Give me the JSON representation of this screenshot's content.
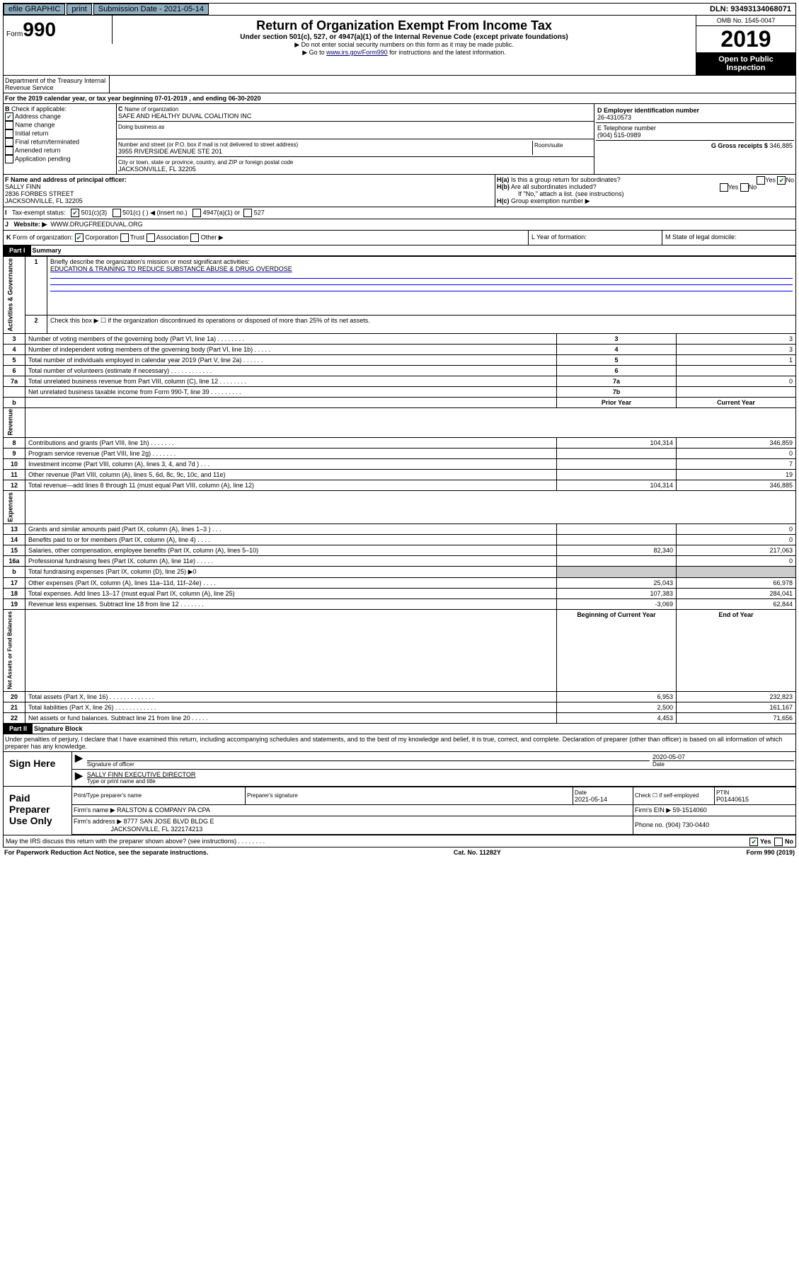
{
  "topbar": {
    "efile": "efile GRAPHIC",
    "print": "print",
    "subdate_label": "Submission Date - 2021-05-14",
    "dln": "DLN: 93493134068071"
  },
  "header": {
    "form_label": "Form",
    "form_num": "990",
    "title": "Return of Organization Exempt From Income Tax",
    "subtitle": "Under section 501(c), 527, or 4947(a)(1) of the Internal Revenue Code (except private foundations)",
    "note1": "▶ Do not enter social security numbers on this form as it may be made public.",
    "note2_pre": "▶ Go to ",
    "note2_link": "www.irs.gov/Form990",
    "note2_post": " for instructions and the latest information.",
    "omb": "OMB No. 1545-0047",
    "year": "2019",
    "open": "Open to Public Inspection",
    "dept": "Department of the Treasury Internal Revenue Service"
  },
  "lineA": "For the 2019 calendar year, or tax year beginning 07-01-2019    , and ending 06-30-2020",
  "boxB": {
    "label": "Check if applicable:",
    "addr": "Address change",
    "name": "Name change",
    "initial": "Initial return",
    "final": "Final return/terminated",
    "amended": "Amended return",
    "app": "Application pending"
  },
  "boxC": {
    "name_lbl": "Name of organization",
    "name": "SAFE AND HEALTHY DUVAL COALITION INC",
    "dba_lbl": "Doing business as",
    "addr_lbl": "Number and street (or P.O. box if mail is not delivered to street address)",
    "addr": "3955 RIVERSIDE AVENUE STE 201",
    "room_lbl": "Room/suite",
    "city_lbl": "City or town, state or province, country, and ZIP or foreign postal code",
    "city": "JACKSONVILLE, FL  32205"
  },
  "boxD": {
    "lbl": "D Employer identification number",
    "val": "26-4310573"
  },
  "boxE": {
    "lbl": "E Telephone number",
    "val": "(904) 515-0989"
  },
  "boxG": {
    "lbl": "G Gross receipts $",
    "val": "346,885"
  },
  "boxF": {
    "lbl": "F  Name and address of principal officer:",
    "name": "SALLY FINN",
    "addr1": "2836 FORBES STREET",
    "addr2": "JACKSONVILLE, FL  32205"
  },
  "boxH": {
    "a": "Is this a group return for subordinates?",
    "b": "Are all subordinates included?",
    "b_note": "If \"No,\" attach a list. (see instructions)",
    "c": "Group exemption number ▶",
    "yes": "Yes",
    "no": "No"
  },
  "boxI": {
    "lbl": "Tax-exempt status:",
    "o1": "501(c)(3)",
    "o2": "501(c) (   ) ◀ (insert no.)",
    "o3": "4947(a)(1) or",
    "o4": "527"
  },
  "boxJ": {
    "lbl": "Website: ▶",
    "val": "WWW.DRUGFREEDUVAL.ORG"
  },
  "boxK": {
    "lbl": "Form of organization:",
    "corp": "Corporation",
    "trust": "Trust",
    "assoc": "Association",
    "other": "Other ▶"
  },
  "boxL": {
    "lbl": "L Year of formation:"
  },
  "boxM": {
    "lbl": "M State of legal domicile:"
  },
  "part1": {
    "hdr": "Part I",
    "title": "Summary",
    "line1_lbl": "Briefly describe the organization's mission or most significant activities:",
    "line1_val": "EDUCATION & TRAINING TO REDUCE SUBSTANCE ABUSE & DRUG OVERDOSE",
    "line2": "Check this box ▶ ☐  if the organization discontinued its operations or disposed of more than 25% of its net assets.",
    "rows_gov": [
      {
        "n": "3",
        "t": "Number of voting members of the governing body (Part VI, line 1a)   .    .    .    .    .    .    .    .",
        "c": "3",
        "v": "3"
      },
      {
        "n": "4",
        "t": "Number of independent voting members of the governing body (Part VI, line 1b)  .    .    .    .    .",
        "c": "4",
        "v": "3"
      },
      {
        "n": "5",
        "t": "Total number of individuals employed in calendar year 2019 (Part V, line 2a)  .    .    .    .    .    .",
        "c": "5",
        "v": "1"
      },
      {
        "n": "6",
        "t": "Total number of volunteers (estimate if necessary)   .    .    .    .    .    .    .    .    .    .    .    .",
        "c": "6",
        "v": ""
      },
      {
        "n": "7a",
        "t": "Total unrelated business revenue from Part VIII, column (C), line 12  .    .    .    .    .    .    .    .",
        "c": "7a",
        "v": "0"
      },
      {
        "n": "",
        "t": "Net unrelated business taxable income from Form 990-T, line 39   .    .    .    .    .    .    .    .    .",
        "c": "7b",
        "v": ""
      }
    ],
    "hdr_prior": "Prior Year",
    "hdr_curr": "Current Year",
    "rows_rev": [
      {
        "n": "8",
        "t": "Contributions and grants (Part VIII, line 1h)   .    .    .    .    .    .    .",
        "p": "104,314",
        "c": "346,859"
      },
      {
        "n": "9",
        "t": "Program service revenue (Part VIII, line 2g)   .    .    .    .    .    .    .",
        "p": "",
        "c": "0"
      },
      {
        "n": "10",
        "t": "Investment income (Part VIII, column (A), lines 3, 4, and 7d )   .    .    .",
        "p": "",
        "c": "7"
      },
      {
        "n": "11",
        "t": "Other revenue (Part VIII, column (A), lines 5, 6d, 8c, 9c, 10c, and 11e)",
        "p": "",
        "c": "19"
      },
      {
        "n": "12",
        "t": "Total revenue—add lines 8 through 11 (must equal Part VIII, column (A), line 12)",
        "p": "104,314",
        "c": "346,885"
      }
    ],
    "rows_exp": [
      {
        "n": "13",
        "t": "Grants and similar amounts paid (Part IX, column (A), lines 1–3 )   .    .    .",
        "p": "",
        "c": "0"
      },
      {
        "n": "14",
        "t": "Benefits paid to or for members (Part IX, column (A), line 4)  .    .    .    .",
        "p": "",
        "c": "0"
      },
      {
        "n": "15",
        "t": "Salaries, other compensation, employee benefits (Part IX, column (A), lines 5–10)",
        "p": "82,340",
        "c": "217,063"
      },
      {
        "n": "16a",
        "t": "Professional fundraising fees (Part IX, column (A), line 11e)  .    .    .    .    .",
        "p": "",
        "c": "0"
      },
      {
        "n": "b",
        "t": "Total fundraising expenses (Part IX, column (D), line 25) ▶0",
        "p": "—",
        "c": "—"
      },
      {
        "n": "17",
        "t": "Other expenses (Part IX, column (A), lines 11a–11d, 11f–24e)  .    .    .    .",
        "p": "25,043",
        "c": "66,978"
      },
      {
        "n": "18",
        "t": "Total expenses. Add lines 13–17 (must equal Part IX, column (A), line 25)",
        "p": "107,383",
        "c": "284,041"
      },
      {
        "n": "19",
        "t": "Revenue less expenses. Subtract line 18 from line 12  .    .    .    .    .    .    .",
        "p": "-3,069",
        "c": "62,844"
      }
    ],
    "hdr_begin": "Beginning of Current Year",
    "hdr_end": "End of Year",
    "rows_net": [
      {
        "n": "20",
        "t": "Total assets (Part X, line 16)  .    .    .    .    .    .    .    .    .    .    .    .    .",
        "p": "6,953",
        "c": "232,823"
      },
      {
        "n": "21",
        "t": "Total liabilities (Part X, line 26)   .    .    .    .    .    .    .    .    .    .    .    .",
        "p": "2,500",
        "c": "161,167"
      },
      {
        "n": "22",
        "t": "Net assets or fund balances. Subtract line 21 from line 20  .    .    .    .    .",
        "p": "4,453",
        "c": "71,656"
      }
    ],
    "vtab_gov": "Activities & Governance",
    "vtab_rev": "Revenue",
    "vtab_exp": "Expenses",
    "vtab_net": "Net Assets or Fund Balances"
  },
  "part2": {
    "hdr": "Part II",
    "title": "Signature Block",
    "perjury": "Under penalties of perjury, I declare that I have examined this return, including accompanying schedules and statements, and to the best of my knowledge and belief, it is true, correct, and complete. Declaration of preparer (other than officer) is based on all information of which preparer has any knowledge.",
    "sign_here": "Sign Here",
    "sig_officer": "Signature of officer",
    "date": "2020-05-07",
    "date_lbl": "Date",
    "officer_name": "SALLY FINN  EXECUTIVE DIRECTOR",
    "type_name": "Type or print name and title",
    "paid": "Paid Preparer Use Only",
    "prep_name_lbl": "Print/Type preparer's name",
    "prep_sig_lbl": "Preparer's signature",
    "prep_date_lbl": "Date",
    "prep_date": "2021-05-14",
    "check_self": "Check ☐ if self-employed",
    "ptin_lbl": "PTIN",
    "ptin": "P01440615",
    "firm_name_lbl": "Firm's name    ▶",
    "firm_name": "RALSTON & COMPANY PA CPA",
    "firm_ein_lbl": "Firm's EIN ▶",
    "firm_ein": "59-1514060",
    "firm_addr_lbl": "Firm's address ▶",
    "firm_addr1": "8777 SAN JOSE BLVD BLDG E",
    "firm_addr2": "JACKSONVILLE, FL  322174213",
    "phone_lbl": "Phone no.",
    "phone": "(904) 730-0440",
    "discuss": "May the IRS discuss this return with the preparer shown above? (see instructions)    .    .    .    .    .    .    .    .",
    "yes": "Yes",
    "no": "No"
  },
  "footer": {
    "left": "For Paperwork Reduction Act Notice, see the separate instructions.",
    "mid": "Cat. No. 11282Y",
    "right": "Form 990 (2019)"
  }
}
